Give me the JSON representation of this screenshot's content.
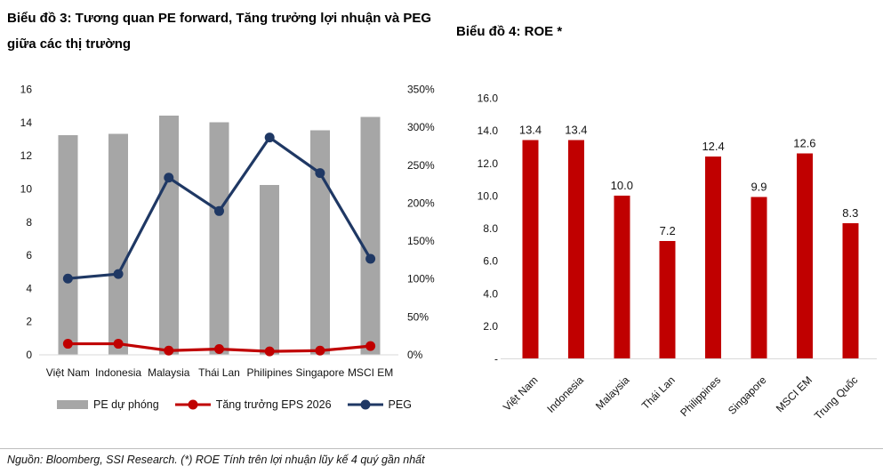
{
  "page": {
    "footer_note": "Nguồn: Bloomberg, SSI Research. (*) ROE Tính trên lợi nhuận lũy kế 4 quý gần nhất"
  },
  "colors": {
    "bar_gray": "#a6a6a6",
    "accent_red": "#c00000",
    "accent_navy": "#1f3864",
    "axis_line": "#d9d9d9",
    "text": "#131313"
  },
  "chart_data": [
    {
      "id": "chart3",
      "type": "bar",
      "subtype": "combo-bar-line",
      "title": "Biểu đồ 3: Tương quan PE forward, Tăng trưởng lợi nhuận và PEG giữa các thị trường",
      "categories": [
        "Việt Nam",
        "Indonesia",
        "Malaysia",
        "Thái Lan",
        "Philipines",
        "Singapore",
        "MSCI EM"
      ],
      "series": [
        {
          "name": "PE dự phóng",
          "render": "bar",
          "axis": "left",
          "color": "#a6a6a6",
          "values": [
            13.2,
            13.3,
            14.4,
            14.0,
            10.2,
            13.5,
            14.3
          ]
        },
        {
          "name": "Tăng trưởng EPS 2026",
          "render": "line",
          "axis": "right",
          "color": "#c00000",
          "unit": "%",
          "values": [
            14,
            14,
            5,
            7,
            4,
            5,
            11
          ]
        },
        {
          "name": "PEG",
          "render": "line",
          "axis": "right",
          "color": "#1f3864",
          "unit": "%",
          "values": [
            100,
            106,
            233,
            189,
            286,
            239,
            126
          ]
        }
      ],
      "left_axis": {
        "min": 0,
        "max": 16,
        "ticks": [
          0,
          2,
          4,
          6,
          8,
          10,
          12,
          14,
          16
        ]
      },
      "right_axis": {
        "min": 0,
        "max": 350,
        "tick_step": 50,
        "tick_labels": [
          "0%",
          "50%",
          "100%",
          "150%",
          "200%",
          "250%",
          "300%",
          "350%"
        ]
      },
      "grid": false,
      "legend_position": "bottom"
    },
    {
      "id": "chart4",
      "type": "bar",
      "title": "Biểu đồ 4: ROE *",
      "categories": [
        "Việt Nam",
        "Indonesia",
        "Malaysia",
        "Thái Lan",
        "Philippines",
        "Singapore",
        "MSCI EM",
        "Trung Quốc"
      ],
      "values": [
        13.4,
        13.4,
        10.0,
        7.2,
        12.4,
        9.9,
        12.6,
        8.3
      ],
      "data_labels": [
        "13.4",
        "13.4",
        "10.0",
        "7.2",
        "12.4",
        "9.9",
        "12.6",
        "8.3"
      ],
      "bar_color": "#c00000",
      "y_axis": {
        "min": 0,
        "max": 16,
        "tick_step": 2,
        "tick_labels": [
          "-",
          "2.0",
          "4.0",
          "6.0",
          "8.0",
          "10.0",
          "12.0",
          "14.0",
          "16.0"
        ]
      },
      "grid": false,
      "legend_position": "none"
    }
  ]
}
